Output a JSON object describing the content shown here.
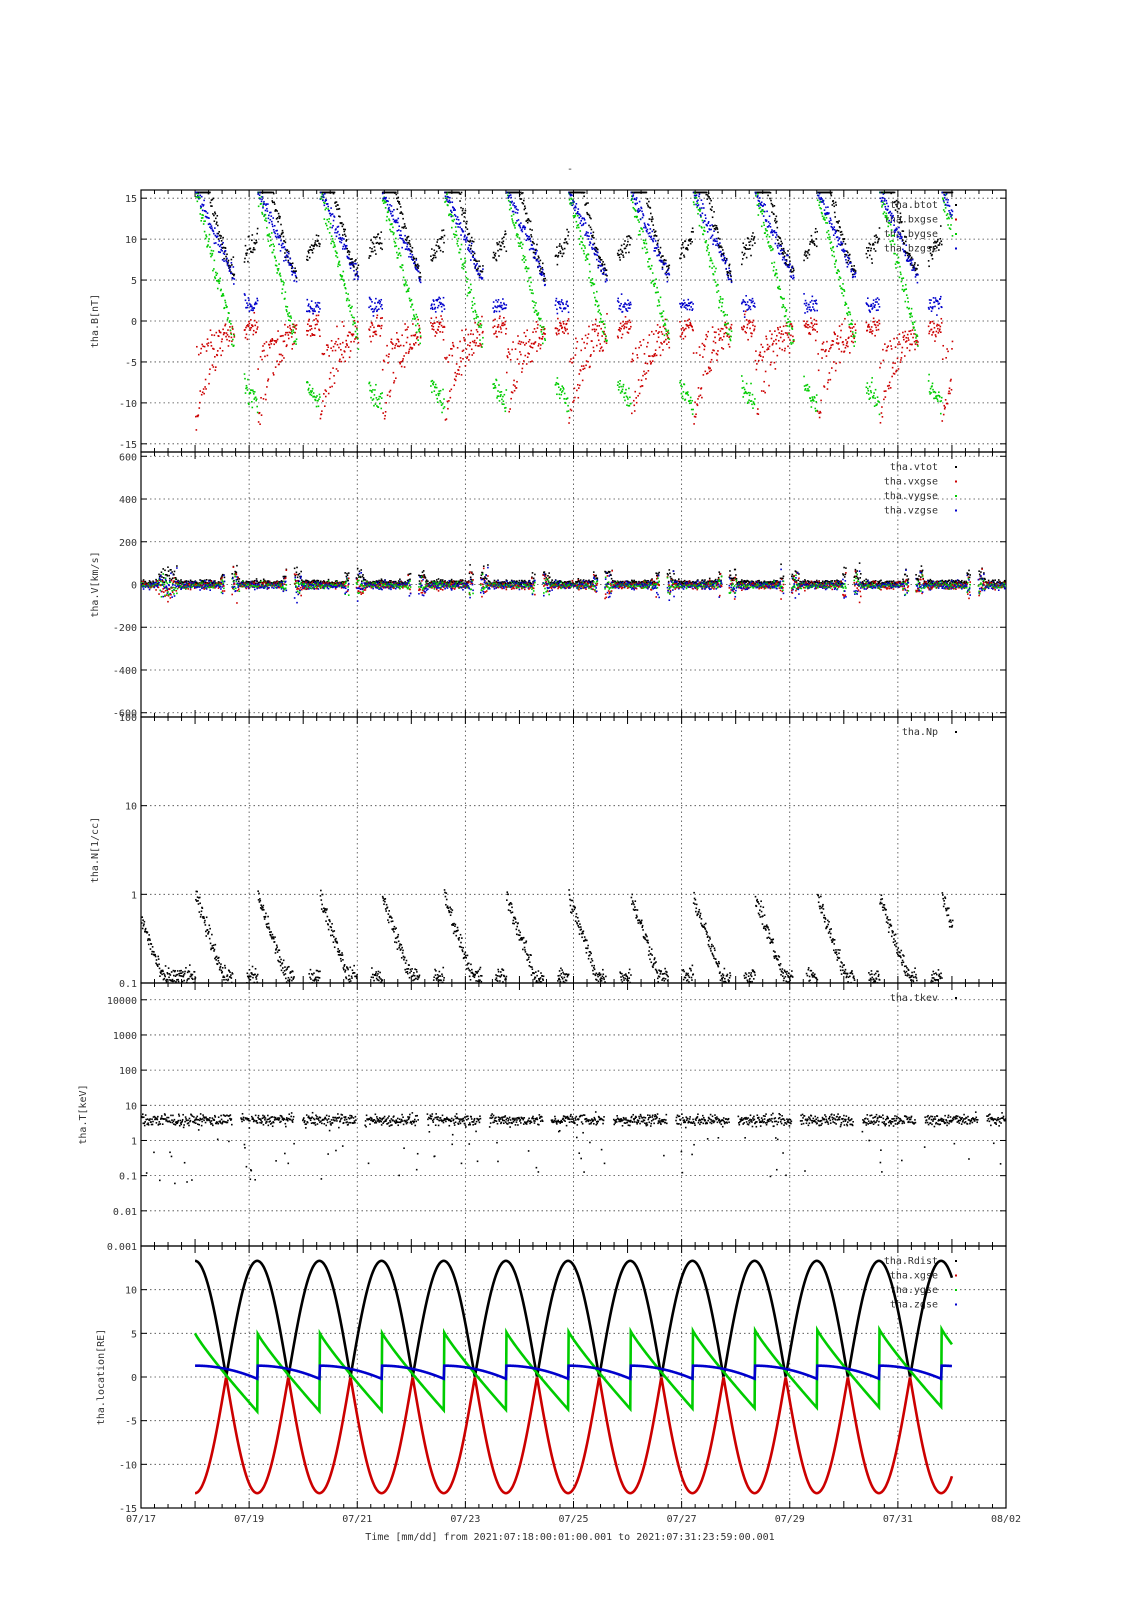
{
  "page_title": "-",
  "time_axis": {
    "tick_labels": [
      "07/17",
      "07/19",
      "07/21",
      "07/23",
      "07/25",
      "07/27",
      "07/29",
      "07/31",
      "08/02"
    ],
    "xlabel": "Time [mm/dd]  from 2021:07:18:00:01:00.001  to  2021:07:31:23:59:00.001",
    "range_days": [
      0,
      16
    ]
  },
  "chart_data": [
    {
      "type": "scatter",
      "panel": "B",
      "ylabel": "tha.B[nT]",
      "ylim": [
        -16,
        16
      ],
      "yticks": [
        -15,
        -10,
        -5,
        0,
        5,
        10,
        15
      ],
      "grid": true,
      "legend_position": "top-right",
      "series": [
        {
          "name": "tha.btot",
          "color": "#000000"
        },
        {
          "name": "tha.bxgse",
          "color": "#cc0000"
        },
        {
          "name": "tha.bygse",
          "color": "#00cc00"
        },
        {
          "name": "tha.bzgse",
          "color": "#0000cc"
        }
      ]
    },
    {
      "type": "scatter",
      "panel": "V",
      "ylabel": "tha.V[km/s]",
      "ylim": [
        -620,
        620
      ],
      "yticks": [
        -600,
        -400,
        -200,
        0,
        200,
        400,
        600
      ],
      "grid": true,
      "legend_position": "top-right",
      "series": [
        {
          "name": "tha.vtot",
          "color": "#000000"
        },
        {
          "name": "tha.vxgse",
          "color": "#cc0000"
        },
        {
          "name": "tha.vygse",
          "color": "#00cc00"
        },
        {
          "name": "tha.vzgse",
          "color": "#0000cc"
        }
      ]
    },
    {
      "type": "scatter",
      "panel": "N",
      "ylabel": "tha.N[1/cc]",
      "ylim": [
        0.1,
        100
      ],
      "log_scale": true,
      "yticks": [
        0.1,
        1,
        10,
        100
      ],
      "ytick_labels": [
        "0.1",
        "1",
        "10",
        "100"
      ],
      "grid": true,
      "legend_position": "top-right",
      "series": [
        {
          "name": "tha.Np",
          "color": "#000000"
        }
      ]
    },
    {
      "type": "scatter",
      "panel": "T",
      "ylabel": "tha.T[keV]",
      "ylim": [
        0.001,
        30000
      ],
      "log_scale": true,
      "yticks": [
        0.001,
        0.01,
        0.1,
        1,
        10,
        100,
        1000,
        10000
      ],
      "ytick_labels": [
        "0.001",
        "0.01",
        "0.1",
        "1",
        "10",
        "100",
        "1000",
        "10000"
      ],
      "grid": true,
      "legend_position": "top-right",
      "series": [
        {
          "name": "tha.tkev",
          "color": "#000000"
        }
      ]
    },
    {
      "type": "line",
      "panel": "location",
      "ylabel": "tha.location[RE]",
      "ylim": [
        -15,
        15
      ],
      "yticks": [
        -15,
        -10,
        -5,
        0,
        5,
        10
      ],
      "grid": true,
      "legend_position": "top-right",
      "orbit_period_days": 1.15,
      "data_range_days": [
        1,
        15
      ],
      "series": [
        {
          "name": "tha.Rdist",
          "color": "#000000",
          "amplitude": 13.3
        },
        {
          "name": "tha.xgse",
          "color": "#cc0000",
          "amplitude": -13.3
        },
        {
          "name": "tha.ygse",
          "color": "#00cc00",
          "min": -4,
          "max": 5
        },
        {
          "name": "tha.zgse",
          "color": "#0000cc",
          "min": -0.2,
          "max": 1.3
        }
      ]
    }
  ]
}
